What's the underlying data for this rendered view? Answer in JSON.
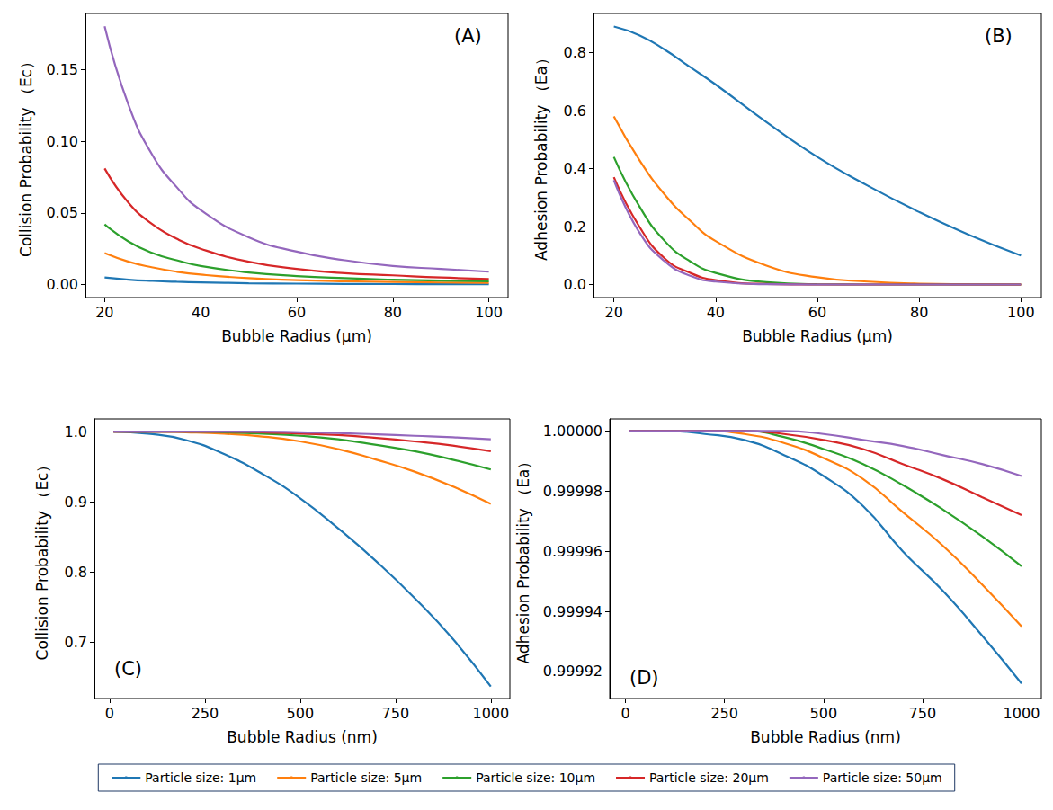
{
  "chart_data": [
    {
      "type": "line",
      "title": "(A)",
      "x_label": "Bubble Radius (μm)",
      "y_label": "Collision Probability （Ec）",
      "x": [
        20,
        25,
        30,
        35,
        40,
        50,
        60,
        70,
        80,
        90,
        100
      ],
      "xlim": [
        16,
        104
      ],
      "xticks": [
        20,
        40,
        60,
        80,
        100
      ],
      "ylim": [
        -0.009,
        0.189
      ],
      "yticks": [
        {
          "value": 0,
          "label": "0.00"
        },
        {
          "value": 0.05,
          "label": "0.05"
        },
        {
          "value": 0.1,
          "label": "0.10"
        },
        {
          "value": 0.15,
          "label": "0.15"
        }
      ],
      "grid": false,
      "legend": "bottom",
      "series": [
        {
          "name": "Particle size: 1μm",
          "color": "#1f77b4",
          "values": [
            0.005,
            0.0035,
            0.0026,
            0.002,
            0.0016,
            0.001,
            0.0007,
            0.0005,
            0.0004,
            0.0003,
            0.00025
          ]
        },
        {
          "name": "Particle size: 5μm",
          "color": "#ff7f0e",
          "values": [
            0.022,
            0.016,
            0.012,
            0.009,
            0.007,
            0.0045,
            0.0032,
            0.0024,
            0.0019,
            0.0015,
            0.0012
          ]
        },
        {
          "name": "Particle size: 10μm",
          "color": "#2ca02c",
          "values": [
            0.042,
            0.03,
            0.022,
            0.017,
            0.013,
            0.0085,
            0.006,
            0.0045,
            0.0035,
            0.0028,
            0.0023
          ]
        },
        {
          "name": "Particle size: 20μm",
          "color": "#d62728",
          "values": [
            0.081,
            0.057,
            0.042,
            0.032,
            0.025,
            0.016,
            0.011,
            0.008,
            0.0065,
            0.005,
            0.004
          ]
        },
        {
          "name": "Particle size: 50μm",
          "color": "#9467bd",
          "values": [
            0.18,
            0.125,
            0.09,
            0.068,
            0.052,
            0.033,
            0.023,
            0.017,
            0.013,
            0.011,
            0.009
          ]
        }
      ]
    },
    {
      "type": "line",
      "title": "(B)",
      "x_label": "Bubble Radius (μm)",
      "y_label": "Adhesion Probability （Ea）",
      "x": [
        20,
        25,
        30,
        35,
        40,
        50,
        60,
        70,
        80,
        90,
        100
      ],
      "xlim": [
        16,
        104
      ],
      "xticks": [
        20,
        40,
        60,
        80,
        100
      ],
      "ylim": [
        -0.045,
        0.935
      ],
      "yticks": [
        {
          "value": 0,
          "label": "0.0"
        },
        0.2,
        0.4,
        0.6,
        0.8
      ],
      "grid": false,
      "legend": "bottom",
      "series": [
        {
          "name": "Particle size: 1μm",
          "color": "#1f77b4",
          "values": [
            0.89,
            0.86,
            0.81,
            0.75,
            0.69,
            0.56,
            0.44,
            0.34,
            0.25,
            0.17,
            0.1
          ]
        },
        {
          "name": "Particle size: 5μm",
          "color": "#ff7f0e",
          "values": [
            0.58,
            0.43,
            0.31,
            0.22,
            0.15,
            0.065,
            0.025,
            0.01,
            0.003,
            0.001,
            0
          ]
        },
        {
          "name": "Particle size: 10μm",
          "color": "#2ca02c",
          "values": [
            0.44,
            0.27,
            0.15,
            0.08,
            0.04,
            0.008,
            0.001,
            0,
            0,
            0,
            0
          ]
        },
        {
          "name": "Particle size: 20μm",
          "color": "#d62728",
          "values": [
            0.37,
            0.2,
            0.09,
            0.04,
            0.015,
            0.002,
            0,
            0,
            0,
            0,
            0
          ]
        },
        {
          "name": "Particle size: 50μm",
          "color": "#9467bd",
          "values": [
            0.36,
            0.18,
            0.08,
            0.03,
            0.01,
            0.001,
            0,
            0,
            0,
            0,
            0
          ]
        }
      ]
    },
    {
      "type": "line",
      "title": "(C)",
      "x_label": "Bubble Radius (nm)",
      "y_label": "Collision Probability （Ec）",
      "x": [
        10,
        100,
        200,
        300,
        400,
        500,
        600,
        700,
        800,
        900,
        1000
      ],
      "xlim": [
        -40,
        1050
      ],
      "xticks": [
        0,
        250,
        500,
        750,
        1000
      ],
      "ylim": [
        0.62,
        1.018
      ],
      "yticks": [
        0.7,
        0.8,
        0.9,
        {
          "value": 1,
          "label": "1.0"
        }
      ],
      "grid": false,
      "legend": "bottom",
      "series": [
        {
          "name": "Particle size: 1μm",
          "color": "#1f77b4",
          "values": [
            1,
            0.997,
            0.988,
            0.968,
            0.94,
            0.905,
            0.862,
            0.815,
            0.763,
            0.705,
            0.637
          ]
        },
        {
          "name": "Particle size: 5μm",
          "color": "#ff7f0e",
          "values": [
            1,
            1,
            0.999,
            0.997,
            0.993,
            0.986,
            0.975,
            0.96,
            0.943,
            0.922,
            0.897
          ]
        },
        {
          "name": "Particle size: 10μm",
          "color": "#2ca02c",
          "values": [
            1,
            1,
            1,
            0.999,
            0.997,
            0.994,
            0.989,
            0.981,
            0.972,
            0.96,
            0.946
          ]
        },
        {
          "name": "Particle size: 20μm",
          "color": "#d62728",
          "values": [
            1,
            1,
            1,
            1,
            0.999,
            0.997,
            0.995,
            0.991,
            0.986,
            0.98,
            0.972
          ]
        },
        {
          "name": "Particle size: 50μm",
          "color": "#9467bd",
          "values": [
            1,
            1,
            1,
            1,
            1,
            0.999,
            0.998,
            0.996,
            0.994,
            0.992,
            0.989
          ]
        }
      ]
    },
    {
      "type": "line",
      "title": "(D)",
      "x_label": "Bubble Radius (nm)",
      "y_label": "Adhesion Probability （Ea）",
      "x": [
        10,
        100,
        200,
        300,
        400,
        500,
        600,
        700,
        800,
        900,
        1000
      ],
      "xlim": [
        -40,
        1050
      ],
      "xticks": [
        0,
        250,
        500,
        750,
        1000
      ],
      "ylim": [
        0.999911,
        1.000004
      ],
      "yticks": [
        0.99992,
        0.99994,
        0.99996,
        0.99998,
        {
          "value": 1,
          "label": "1.00000"
        }
      ],
      "grid": false,
      "legend": "bottom",
      "series": [
        {
          "name": "Particle size: 1μm",
          "color": "#1f77b4",
          "values": [
            1,
            1,
            0.999999,
            0.999997,
            0.999992,
            0.999985,
            0.999975,
            0.99996,
            0.999947,
            0.999932,
            0.999916
          ]
        },
        {
          "name": "Particle size: 5μm",
          "color": "#ff7f0e",
          "values": [
            1,
            1,
            1,
            0.999999,
            0.999996,
            0.999991,
            0.999984,
            0.999973,
            0.999962,
            0.999949,
            0.999935
          ]
        },
        {
          "name": "Particle size: 10μm",
          "color": "#2ca02c",
          "values": [
            1,
            1,
            1,
            1,
            0.999998,
            0.999994,
            0.999989,
            0.999982,
            0.999974,
            0.999965,
            0.999955
          ]
        },
        {
          "name": "Particle size: 20μm",
          "color": "#d62728",
          "values": [
            1,
            1,
            1,
            1,
            0.999999,
            0.999997,
            0.999994,
            0.999989,
            0.999984,
            0.999978,
            0.999972
          ]
        },
        {
          "name": "Particle size: 50μm",
          "color": "#9467bd",
          "values": [
            1,
            1,
            1,
            1,
            1,
            0.999999,
            0.999997,
            0.999995,
            0.999992,
            0.999989,
            0.999985
          ]
        }
      ]
    }
  ]
}
